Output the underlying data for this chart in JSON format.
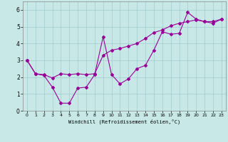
{
  "xlabel": "Windchill (Refroidissement éolien,°C)",
  "x_values": [
    0,
    1,
    2,
    3,
    4,
    5,
    6,
    7,
    8,
    9,
    10,
    11,
    12,
    13,
    14,
    15,
    16,
    17,
    18,
    19,
    20,
    21,
    22,
    23
  ],
  "line1_y": [
    3.0,
    2.2,
    2.1,
    1.4,
    0.45,
    0.45,
    1.35,
    1.4,
    2.15,
    4.4,
    2.15,
    1.6,
    1.9,
    2.5,
    2.7,
    3.6,
    4.7,
    4.55,
    4.6,
    5.85,
    5.45,
    5.3,
    5.2,
    5.45
  ],
  "line2_y": [
    3.0,
    2.2,
    2.15,
    1.95,
    2.2,
    2.15,
    2.2,
    2.15,
    2.2,
    3.3,
    3.6,
    3.7,
    3.85,
    4.0,
    4.3,
    4.65,
    4.8,
    5.05,
    5.2,
    5.3,
    5.4,
    5.3,
    5.3,
    5.45
  ],
  "line_color": "#990099",
  "bg_color": "#c8e8e8",
  "plot_bg_color": "#c8e8e8",
  "grid_color": "#a0cccc",
  "ylim": [
    0,
    6.5
  ],
  "xlim": [
    -0.5,
    23.5
  ],
  "yticks": [
    0,
    1,
    2,
    3,
    4,
    5,
    6
  ],
  "xticks": [
    0,
    1,
    2,
    3,
    4,
    5,
    6,
    7,
    8,
    9,
    10,
    11,
    12,
    13,
    14,
    15,
    16,
    17,
    18,
    19,
    20,
    21,
    22,
    23
  ],
  "marker": "D",
  "marker_size": 2,
  "linewidth": 0.8
}
